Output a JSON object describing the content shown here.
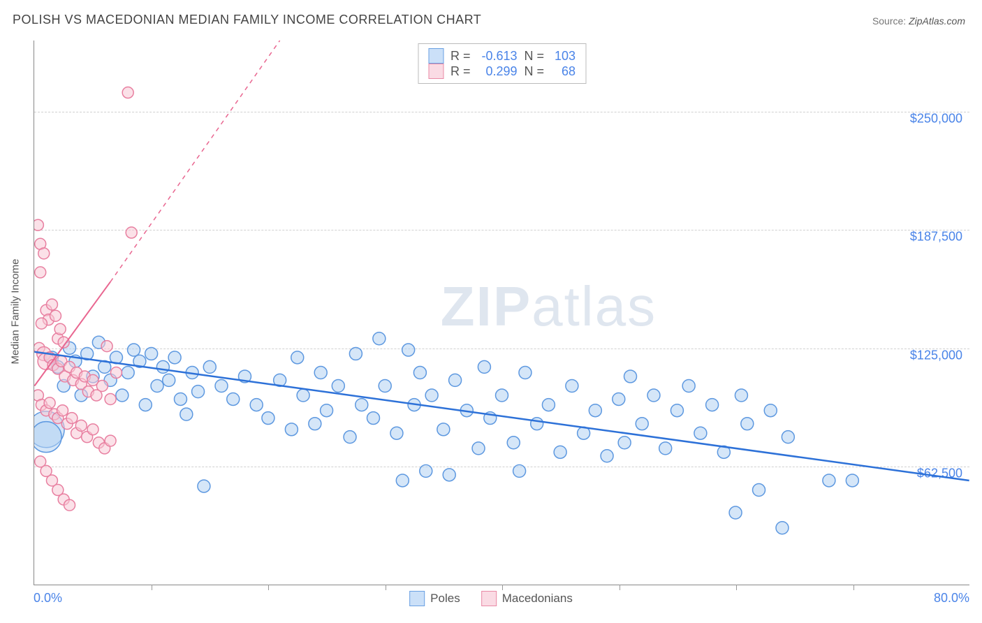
{
  "title": "POLISH VS MACEDONIAN MEDIAN FAMILY INCOME CORRELATION CHART",
  "source_prefix": "Source: ",
  "source": "ZipAtlas.com",
  "watermark_a": "ZIP",
  "watermark_b": "atlas",
  "ylabel": "Median Family Income",
  "chart": {
    "type": "scatter",
    "xlim": [
      0,
      80
    ],
    "ylim": [
      0,
      287500
    ],
    "x_label_min": "0.0%",
    "x_label_max": "80.0%",
    "x_tick_positions": [
      10,
      20,
      30,
      40,
      50,
      60,
      70
    ],
    "y_ticks": [
      {
        "value": 62500,
        "label": "$62,500"
      },
      {
        "value": 125000,
        "label": "$125,000"
      },
      {
        "value": 187500,
        "label": "$187,500"
      },
      {
        "value": 250000,
        "label": "$250,000"
      }
    ],
    "background_color": "#ffffff",
    "grid_color": "#d0d0d0",
    "axis_color": "#888888",
    "tick_label_color": "#4a84e8",
    "series": {
      "poles": {
        "label": "Poles",
        "R": "-0.613",
        "N": "103",
        "fill": "#b3d1f3",
        "stroke": "#5d98e0",
        "fill_opacity": 0.55,
        "swatch_fill": "#cbe0f8",
        "swatch_stroke": "#6aa0e2",
        "trend_color": "#2d71d8",
        "trend_width": 2.5,
        "trend_dash": "",
        "trend": {
          "x1": 0,
          "y1": 123000,
          "x2": 80,
          "y2": 55000
        },
        "points": [
          {
            "x": 1.0,
            "y": 82000,
            "r": 26
          },
          {
            "x": 1.0,
            "y": 78000,
            "r": 22
          },
          {
            "x": 1.5,
            "y": 120000,
            "r": 9
          },
          {
            "x": 2.0,
            "y": 115000,
            "r": 9
          },
          {
            "x": 2.5,
            "y": 105000,
            "r": 9
          },
          {
            "x": 3.0,
            "y": 125000,
            "r": 9
          },
          {
            "x": 3.5,
            "y": 118000,
            "r": 9
          },
          {
            "x": 4.0,
            "y": 100000,
            "r": 9
          },
          {
            "x": 4.5,
            "y": 122000,
            "r": 9
          },
          {
            "x": 5.0,
            "y": 110000,
            "r": 9
          },
          {
            "x": 5.5,
            "y": 128000,
            "r": 9
          },
          {
            "x": 6.0,
            "y": 115000,
            "r": 9
          },
          {
            "x": 6.5,
            "y": 108000,
            "r": 9
          },
          {
            "x": 7.0,
            "y": 120000,
            "r": 9
          },
          {
            "x": 7.5,
            "y": 100000,
            "r": 9
          },
          {
            "x": 8.0,
            "y": 112000,
            "r": 9
          },
          {
            "x": 8.5,
            "y": 124000,
            "r": 9
          },
          {
            "x": 9.0,
            "y": 118000,
            "r": 9
          },
          {
            "x": 9.5,
            "y": 95000,
            "r": 9
          },
          {
            "x": 10.0,
            "y": 122000,
            "r": 9
          },
          {
            "x": 10.5,
            "y": 105000,
            "r": 9
          },
          {
            "x": 11.0,
            "y": 115000,
            "r": 9
          },
          {
            "x": 11.5,
            "y": 108000,
            "r": 9
          },
          {
            "x": 12.0,
            "y": 120000,
            "r": 9
          },
          {
            "x": 12.5,
            "y": 98000,
            "r": 9
          },
          {
            "x": 13.0,
            "y": 90000,
            "r": 9
          },
          {
            "x": 13.5,
            "y": 112000,
            "r": 9
          },
          {
            "x": 14.0,
            "y": 102000,
            "r": 9
          },
          {
            "x": 14.5,
            "y": 52000,
            "r": 9
          },
          {
            "x": 15.0,
            "y": 115000,
            "r": 9
          },
          {
            "x": 16.0,
            "y": 105000,
            "r": 9
          },
          {
            "x": 17.0,
            "y": 98000,
            "r": 9
          },
          {
            "x": 18.0,
            "y": 110000,
            "r": 9
          },
          {
            "x": 19.0,
            "y": 95000,
            "r": 9
          },
          {
            "x": 20.0,
            "y": 88000,
            "r": 9
          },
          {
            "x": 21.0,
            "y": 108000,
            "r": 9
          },
          {
            "x": 22.0,
            "y": 82000,
            "r": 9
          },
          {
            "x": 22.5,
            "y": 120000,
            "r": 9
          },
          {
            "x": 23.0,
            "y": 100000,
            "r": 9
          },
          {
            "x": 24.0,
            "y": 85000,
            "r": 9
          },
          {
            "x": 24.5,
            "y": 112000,
            "r": 9
          },
          {
            "x": 25.0,
            "y": 92000,
            "r": 9
          },
          {
            "x": 26.0,
            "y": 105000,
            "r": 9
          },
          {
            "x": 27.0,
            "y": 78000,
            "r": 9
          },
          {
            "x": 27.5,
            "y": 122000,
            "r": 9
          },
          {
            "x": 28.0,
            "y": 95000,
            "r": 9
          },
          {
            "x": 29.0,
            "y": 88000,
            "r": 9
          },
          {
            "x": 29.5,
            "y": 130000,
            "r": 9
          },
          {
            "x": 30.0,
            "y": 105000,
            "r": 9
          },
          {
            "x": 31.0,
            "y": 80000,
            "r": 9
          },
          {
            "x": 31.5,
            "y": 55000,
            "r": 9
          },
          {
            "x": 32.0,
            "y": 124000,
            "r": 9
          },
          {
            "x": 32.5,
            "y": 95000,
            "r": 9
          },
          {
            "x": 33.0,
            "y": 112000,
            "r": 9
          },
          {
            "x": 33.5,
            "y": 60000,
            "r": 9
          },
          {
            "x": 34.0,
            "y": 100000,
            "r": 9
          },
          {
            "x": 35.0,
            "y": 82000,
            "r": 9
          },
          {
            "x": 35.5,
            "y": 58000,
            "r": 9
          },
          {
            "x": 36.0,
            "y": 108000,
            "r": 9
          },
          {
            "x": 37.0,
            "y": 92000,
            "r": 9
          },
          {
            "x": 38.0,
            "y": 72000,
            "r": 9
          },
          {
            "x": 38.5,
            "y": 115000,
            "r": 9
          },
          {
            "x": 39.0,
            "y": 88000,
            "r": 9
          },
          {
            "x": 40.0,
            "y": 100000,
            "r": 9
          },
          {
            "x": 41.0,
            "y": 75000,
            "r": 9
          },
          {
            "x": 41.5,
            "y": 60000,
            "r": 9
          },
          {
            "x": 42.0,
            "y": 112000,
            "r": 9
          },
          {
            "x": 43.0,
            "y": 85000,
            "r": 9
          },
          {
            "x": 44.0,
            "y": 95000,
            "r": 9
          },
          {
            "x": 45.0,
            "y": 70000,
            "r": 9
          },
          {
            "x": 46.0,
            "y": 105000,
            "r": 9
          },
          {
            "x": 47.0,
            "y": 80000,
            "r": 9
          },
          {
            "x": 48.0,
            "y": 92000,
            "r": 9
          },
          {
            "x": 49.0,
            "y": 68000,
            "r": 9
          },
          {
            "x": 50.0,
            "y": 98000,
            "r": 9
          },
          {
            "x": 50.5,
            "y": 75000,
            "r": 9
          },
          {
            "x": 51.0,
            "y": 110000,
            "r": 9
          },
          {
            "x": 52.0,
            "y": 85000,
            "r": 9
          },
          {
            "x": 53.0,
            "y": 100000,
            "r": 9
          },
          {
            "x": 54.0,
            "y": 72000,
            "r": 9
          },
          {
            "x": 55.0,
            "y": 92000,
            "r": 9
          },
          {
            "x": 56.0,
            "y": 105000,
            "r": 9
          },
          {
            "x": 57.0,
            "y": 80000,
            "r": 9
          },
          {
            "x": 58.0,
            "y": 95000,
            "r": 9
          },
          {
            "x": 59.0,
            "y": 70000,
            "r": 9
          },
          {
            "x": 60.0,
            "y": 38000,
            "r": 9
          },
          {
            "x": 60.5,
            "y": 100000,
            "r": 9
          },
          {
            "x": 61.0,
            "y": 85000,
            "r": 9
          },
          {
            "x": 62.0,
            "y": 50000,
            "r": 9
          },
          {
            "x": 63.0,
            "y": 92000,
            "r": 9
          },
          {
            "x": 64.0,
            "y": 30000,
            "r": 9
          },
          {
            "x": 64.5,
            "y": 78000,
            "r": 9
          },
          {
            "x": 68.0,
            "y": 55000,
            "r": 9
          },
          {
            "x": 70.0,
            "y": 55000,
            "r": 9
          }
        ]
      },
      "macedonians": {
        "label": "Macedonians",
        "R": "0.299",
        "N": "68",
        "fill": "#f8c9d6",
        "stroke": "#e87fa0",
        "fill_opacity": 0.55,
        "swatch_fill": "#fadbe4",
        "swatch_stroke": "#e98aa6",
        "trend_color": "#e96690",
        "trend_width": 2,
        "trend_dash": "",
        "trend": {
          "x1": 0,
          "y1": 105000,
          "x2": 6.5,
          "y2": 160000
        },
        "trend_ext_dash": "6,6",
        "trend_ext": {
          "x1": 6.5,
          "y1": 160000,
          "x2": 21,
          "y2": 287500
        },
        "points": [
          {
            "x": 0.3,
            "y": 190000,
            "r": 8
          },
          {
            "x": 0.5,
            "y": 180000,
            "r": 8
          },
          {
            "x": 0.8,
            "y": 175000,
            "r": 8
          },
          {
            "x": 0.5,
            "y": 165000,
            "r": 8
          },
          {
            "x": 1.0,
            "y": 145000,
            "r": 8
          },
          {
            "x": 1.2,
            "y": 140000,
            "r": 8
          },
          {
            "x": 1.5,
            "y": 148000,
            "r": 8
          },
          {
            "x": 0.6,
            "y": 138000,
            "r": 8
          },
          {
            "x": 1.8,
            "y": 142000,
            "r": 8
          },
          {
            "x": 2.0,
            "y": 130000,
            "r": 8
          },
          {
            "x": 2.2,
            "y": 135000,
            "r": 8
          },
          {
            "x": 2.5,
            "y": 128000,
            "r": 8
          },
          {
            "x": 0.4,
            "y": 125000,
            "r": 8
          },
          {
            "x": 0.8,
            "y": 122000,
            "r": 10
          },
          {
            "x": 1.0,
            "y": 118000,
            "r": 12
          },
          {
            "x": 1.3,
            "y": 120000,
            "r": 8
          },
          {
            "x": 1.6,
            "y": 116000,
            "r": 8
          },
          {
            "x": 2.0,
            "y": 114000,
            "r": 8
          },
          {
            "x": 2.3,
            "y": 118000,
            "r": 8
          },
          {
            "x": 2.6,
            "y": 110000,
            "r": 8
          },
          {
            "x": 3.0,
            "y": 115000,
            "r": 8
          },
          {
            "x": 3.3,
            "y": 108000,
            "r": 8
          },
          {
            "x": 3.6,
            "y": 112000,
            "r": 8
          },
          {
            "x": 4.0,
            "y": 106000,
            "r": 8
          },
          {
            "x": 4.3,
            "y": 110000,
            "r": 8
          },
          {
            "x": 4.6,
            "y": 102000,
            "r": 8
          },
          {
            "x": 5.0,
            "y": 108000,
            "r": 8
          },
          {
            "x": 5.3,
            "y": 100000,
            "r": 8
          },
          {
            "x": 5.8,
            "y": 105000,
            "r": 8
          },
          {
            "x": 6.2,
            "y": 126000,
            "r": 8
          },
          {
            "x": 6.5,
            "y": 98000,
            "r": 8
          },
          {
            "x": 7.0,
            "y": 112000,
            "r": 8
          },
          {
            "x": 8.0,
            "y": 260000,
            "r": 8
          },
          {
            "x": 8.3,
            "y": 186000,
            "r": 8
          },
          {
            "x": 0.3,
            "y": 100000,
            "r": 8
          },
          {
            "x": 0.6,
            "y": 95000,
            "r": 8
          },
          {
            "x": 1.0,
            "y": 92000,
            "r": 8
          },
          {
            "x": 1.3,
            "y": 96000,
            "r": 8
          },
          {
            "x": 1.7,
            "y": 90000,
            "r": 8
          },
          {
            "x": 2.0,
            "y": 88000,
            "r": 8
          },
          {
            "x": 2.4,
            "y": 92000,
            "r": 8
          },
          {
            "x": 2.8,
            "y": 85000,
            "r": 8
          },
          {
            "x": 3.2,
            "y": 88000,
            "r": 8
          },
          {
            "x": 3.6,
            "y": 80000,
            "r": 8
          },
          {
            "x": 4.0,
            "y": 84000,
            "r": 8
          },
          {
            "x": 4.5,
            "y": 78000,
            "r": 8
          },
          {
            "x": 5.0,
            "y": 82000,
            "r": 8
          },
          {
            "x": 5.5,
            "y": 75000,
            "r": 8
          },
          {
            "x": 6.0,
            "y": 72000,
            "r": 8
          },
          {
            "x": 6.5,
            "y": 76000,
            "r": 8
          },
          {
            "x": 0.5,
            "y": 65000,
            "r": 8
          },
          {
            "x": 1.0,
            "y": 60000,
            "r": 8
          },
          {
            "x": 1.5,
            "y": 55000,
            "r": 8
          },
          {
            "x": 2.0,
            "y": 50000,
            "r": 8
          },
          {
            "x": 2.5,
            "y": 45000,
            "r": 8
          },
          {
            "x": 3.0,
            "y": 42000,
            "r": 8
          }
        ]
      }
    }
  }
}
